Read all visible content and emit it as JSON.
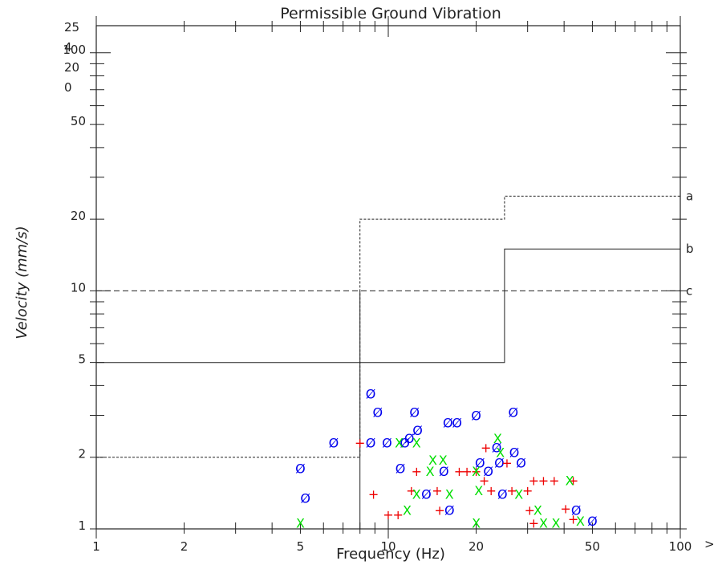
{
  "chart_data": {
    "type": "scatter",
    "title": "Permissible Ground Vibration",
    "xlabel": "Frequency (Hz)",
    "ylabel": "Velocity (mm/s)",
    "x_scale": "log",
    "y_scale": "log",
    "xlim": [
      1,
      100
    ],
    "ylim": [
      1,
      130
    ],
    "x_tick_labels": [
      "1",
      "2",
      "5",
      "10",
      "20",
      "50",
      "100"
    ],
    "y_tick_labels": [
      "1",
      "2",
      "5",
      "10",
      "20",
      "50",
      "100"
    ],
    "top_left_labels": [
      "25",
      "4",
      "20",
      "0"
    ],
    "x_overflow_label": ">",
    "grid": false,
    "limit_curves": [
      {
        "name": "a",
        "style": "dotted",
        "points": [
          [
            1,
            2
          ],
          [
            8,
            2
          ],
          [
            8,
            20
          ],
          [
            25,
            20
          ],
          [
            25,
            25
          ],
          [
            100,
            25
          ]
        ]
      },
      {
        "name": "b",
        "style": "solid",
        "points": [
          [
            1,
            5
          ],
          [
            25,
            5
          ],
          [
            25,
            15
          ],
          [
            100,
            15
          ]
        ]
      },
      {
        "name": "c",
        "style": "dashed",
        "points": [
          [
            1,
            10
          ],
          [
            100,
            10
          ]
        ]
      },
      {
        "name": "",
        "style": "solid",
        "points": [
          [
            8,
            1
          ],
          [
            8,
            10
          ]
        ]
      }
    ],
    "series": [
      {
        "marker": "Ø",
        "color": "#0000ee",
        "points": [
          [
            5,
            1.8
          ],
          [
            5.2,
            1.35
          ],
          [
            6.5,
            2.3
          ],
          [
            8.7,
            3.7
          ],
          [
            9.2,
            3.1
          ],
          [
            8.7,
            2.3
          ],
          [
            9.9,
            2.3
          ],
          [
            11.4,
            2.3
          ],
          [
            11.8,
            2.4
          ],
          [
            12.3,
            3.1
          ],
          [
            12.6,
            2.6
          ],
          [
            11,
            1.8
          ],
          [
            13.5,
            1.4
          ],
          [
            15.5,
            1.75
          ],
          [
            16.2,
            1.2
          ],
          [
            16,
            2.8
          ],
          [
            17.2,
            2.8
          ],
          [
            20,
            3
          ],
          [
            20.6,
            1.9
          ],
          [
            22,
            1.75
          ],
          [
            23.5,
            2.2
          ],
          [
            24,
            1.9
          ],
          [
            24.6,
            1.4
          ],
          [
            26.8,
            3.1
          ],
          [
            27,
            2.1
          ],
          [
            28.5,
            1.9
          ],
          [
            44,
            1.2
          ],
          [
            50,
            1.08
          ]
        ]
      },
      {
        "marker": "+",
        "color": "#ee0000",
        "points": [
          [
            8,
            2.3
          ],
          [
            8.9,
            1.4
          ],
          [
            10,
            1.15
          ],
          [
            10.8,
            1.15
          ],
          [
            12,
            1.45
          ],
          [
            12.5,
            1.75
          ],
          [
            14.7,
            1.45
          ],
          [
            15,
            1.2
          ],
          [
            17.5,
            1.75
          ],
          [
            18.6,
            1.75
          ],
          [
            20,
            1.75
          ],
          [
            21.3,
            1.6
          ],
          [
            21.6,
            2.2
          ],
          [
            22.5,
            1.45
          ],
          [
            25.5,
            1.9
          ],
          [
            26.5,
            1.45
          ],
          [
            30,
            1.45
          ],
          [
            30.5,
            1.2
          ],
          [
            31.5,
            1.6
          ],
          [
            31.5,
            1.06
          ],
          [
            34,
            1.6
          ],
          [
            37,
            1.6
          ],
          [
            40.5,
            1.22
          ],
          [
            43,
            1.6
          ],
          [
            43,
            1.1
          ]
        ]
      },
      {
        "marker": "X",
        "color": "#00dd00",
        "points": [
          [
            5,
            1.06
          ],
          [
            10.9,
            2.3
          ],
          [
            12.5,
            2.3
          ],
          [
            11.6,
            1.2
          ],
          [
            12.5,
            1.4
          ],
          [
            13.9,
            1.75
          ],
          [
            14.2,
            1.95
          ],
          [
            15.4,
            1.95
          ],
          [
            16.2,
            1.4
          ],
          [
            20,
            1.06
          ],
          [
            20,
            1.75
          ],
          [
            20.4,
            1.45
          ],
          [
            23.7,
            2.4
          ],
          [
            24.2,
            2.1
          ],
          [
            28,
            1.4
          ],
          [
            32.5,
            1.2
          ],
          [
            34,
            1.06
          ],
          [
            37.5,
            1.06
          ],
          [
            41.8,
            1.6
          ],
          [
            45.5,
            1.08
          ]
        ]
      }
    ]
  }
}
